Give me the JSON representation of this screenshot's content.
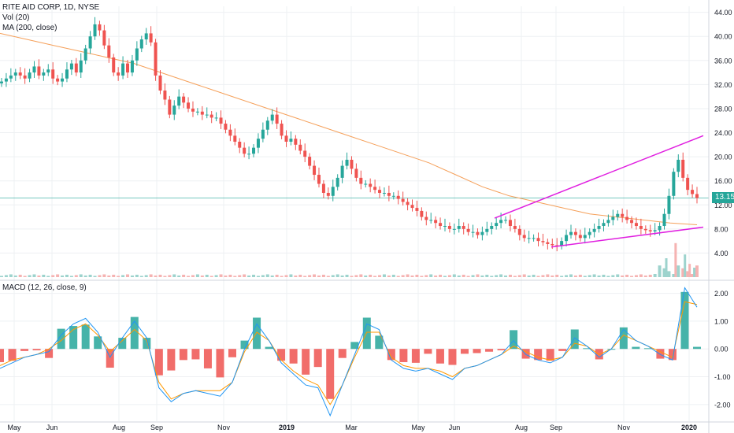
{
  "header": {
    "symbol_line": "RITE AID CORP, 1D, NYSE",
    "vol_label": "Vol (20)",
    "ma_label": "MA (200, close)",
    "macd_label": "MACD (12, 26, close, 9)",
    "last_price": "13.15"
  },
  "colors": {
    "up": "#26a69a",
    "down": "#ef5350",
    "ma": "#f5a05a",
    "trendline": "#e020e0",
    "macd_line": "#2196f3",
    "signal_line": "#ff9800",
    "grid": "#eef0f3",
    "last_price_bg": "#26a69a"
  },
  "chart_data": [
    {
      "type": "candlestick",
      "title": "RITE AID CORP, 1D, NYSE",
      "x_ticks": [
        "May",
        "Jun",
        "Aug",
        "Sep",
        "Nov",
        "2019",
        "Mar",
        "May",
        "Jun",
        "Aug",
        "Sep",
        "Nov",
        "2020"
      ],
      "y_ticks": [
        "4.00",
        "8.00",
        "12.00",
        "16.00",
        "20.00",
        "24.00",
        "28.00",
        "32.00",
        "36.00",
        "40.00",
        "44.00"
      ],
      "ylim": [
        0,
        45
      ],
      "close": [
        32.5,
        33.0,
        33.5,
        34.0,
        33.5,
        33.0,
        34.0,
        35.0,
        33.5,
        34.0,
        34.5,
        33.0,
        32.5,
        33.0,
        34.5,
        35.5,
        34.0,
        36.0,
        38.0,
        40.0,
        42.0,
        41.0,
        38.5,
        36.5,
        34.0,
        33.5,
        35.5,
        34.0,
        36.0,
        38.0,
        39.5,
        40.5,
        39.0,
        33.5,
        31.0,
        29.5,
        27.0,
        28.5,
        30.0,
        29.0,
        28.0,
        27.5,
        27.5,
        27.0,
        27.0,
        26.5,
        26.5,
        25.5,
        24.5,
        23.5,
        22.5,
        21.5,
        20.5,
        20.5,
        21.5,
        23.0,
        24.5,
        26.0,
        27.0,
        25.5,
        23.5,
        22.5,
        23.0,
        22.0,
        21.0,
        20.0,
        18.5,
        17.0,
        15.5,
        14.0,
        13.5,
        15.0,
        16.5,
        18.5,
        19.5,
        18.0,
        16.5,
        15.5,
        15.5,
        15.0,
        14.5,
        14.0,
        14.0,
        13.5,
        13.5,
        13.0,
        12.5,
        12.0,
        11.5,
        11.0,
        10.0,
        9.5,
        9.5,
        9.0,
        8.5,
        8.5,
        8.0,
        8.0,
        8.5,
        8.0,
        7.5,
        7.5,
        7.0,
        7.5,
        8.0,
        8.5,
        9.0,
        9.5,
        9.5,
        8.5,
        8.0,
        7.0,
        6.5,
        6.5,
        6.5,
        6.0,
        5.8,
        5.5,
        5.3,
        5.2,
        6.0,
        7.0,
        7.5,
        7.0,
        6.5,
        7.0,
        7.5,
        8.0,
        8.5,
        9.0,
        9.5,
        10.0,
        10.5,
        10.0,
        9.5,
        9.0,
        8.5,
        8.0,
        7.8,
        7.6,
        7.8,
        8.5,
        10.5,
        13.5,
        17.5,
        19.5,
        16.5,
        14.5,
        13.8,
        13.15
      ],
      "ma200": [
        40.5,
        39.5,
        38.5,
        37.5,
        36.5,
        35.5,
        34.0,
        32.5,
        31.0,
        29.5,
        28.0,
        26.5,
        25.0,
        23.5,
        22.0,
        20.5,
        19.0,
        17.0,
        15.0,
        13.5,
        12.5,
        11.5,
        10.5,
        10.0,
        9.5,
        9.0,
        8.7
      ],
      "volume_peaks": [
        {
          "at": "Jun",
          "value": 1.6
        },
        {
          "at": "Aug",
          "value": 1.4
        },
        {
          "at": "Aug",
          "value": 1.8
        },
        {
          "at": "Sep",
          "value": 4.8
        },
        {
          "at": "Nov",
          "value": 9.0
        },
        {
          "at": "2020",
          "value": 8.0
        }
      ]
    },
    {
      "type": "line",
      "title": "MACD (12, 26, close, 9)",
      "y_ticks": [
        "-2.00",
        "-1.00",
        "0.00",
        "1.00",
        "2.00"
      ],
      "ylim": [
        -2.6,
        2.3
      ],
      "series": [
        {
          "name": "MACD",
          "values": [
            -0.7,
            -0.5,
            -0.3,
            -0.2,
            -0.1,
            0.5,
            0.9,
            1.1,
            0.6,
            -0.3,
            0.4,
            1.0,
            0.4,
            -1.4,
            -1.9,
            -1.6,
            -1.5,
            -1.6,
            -1.7,
            -1.2,
            0.0,
            0.9,
            0.3,
            -0.5,
            -0.9,
            -1.3,
            -1.4,
            -2.4,
            -1.3,
            -0.2,
            0.9,
            0.7,
            -0.4,
            -0.7,
            -0.8,
            -0.7,
            -0.9,
            -1.1,
            -0.7,
            -0.6,
            -0.4,
            -0.2,
            0.3,
            -0.2,
            -0.4,
            -0.5,
            -0.3,
            0.4,
            0.1,
            -0.3,
            0.0,
            0.7,
            0.3,
            0.1,
            -0.2,
            -0.4,
            2.2,
            1.5
          ]
        },
        {
          "name": "Signal",
          "values": [
            -0.6,
            -0.4,
            -0.3,
            -0.2,
            0.0,
            0.3,
            0.7,
            0.9,
            0.5,
            -0.1,
            0.3,
            0.7,
            0.3,
            -1.2,
            -1.8,
            -1.6,
            -1.5,
            -1.5,
            -1.5,
            -1.2,
            -0.1,
            0.6,
            0.3,
            -0.4,
            -0.8,
            -1.1,
            -1.3,
            -2.0,
            -1.3,
            -0.3,
            0.6,
            0.6,
            -0.3,
            -0.6,
            -0.7,
            -0.7,
            -0.8,
            -1.0,
            -0.7,
            -0.6,
            -0.4,
            -0.2,
            0.1,
            -0.1,
            -0.3,
            -0.4,
            -0.3,
            0.2,
            0.1,
            -0.2,
            0.0,
            0.5,
            0.3,
            0.1,
            -0.1,
            -0.3,
            1.7,
            1.6
          ]
        }
      ]
    }
  ]
}
